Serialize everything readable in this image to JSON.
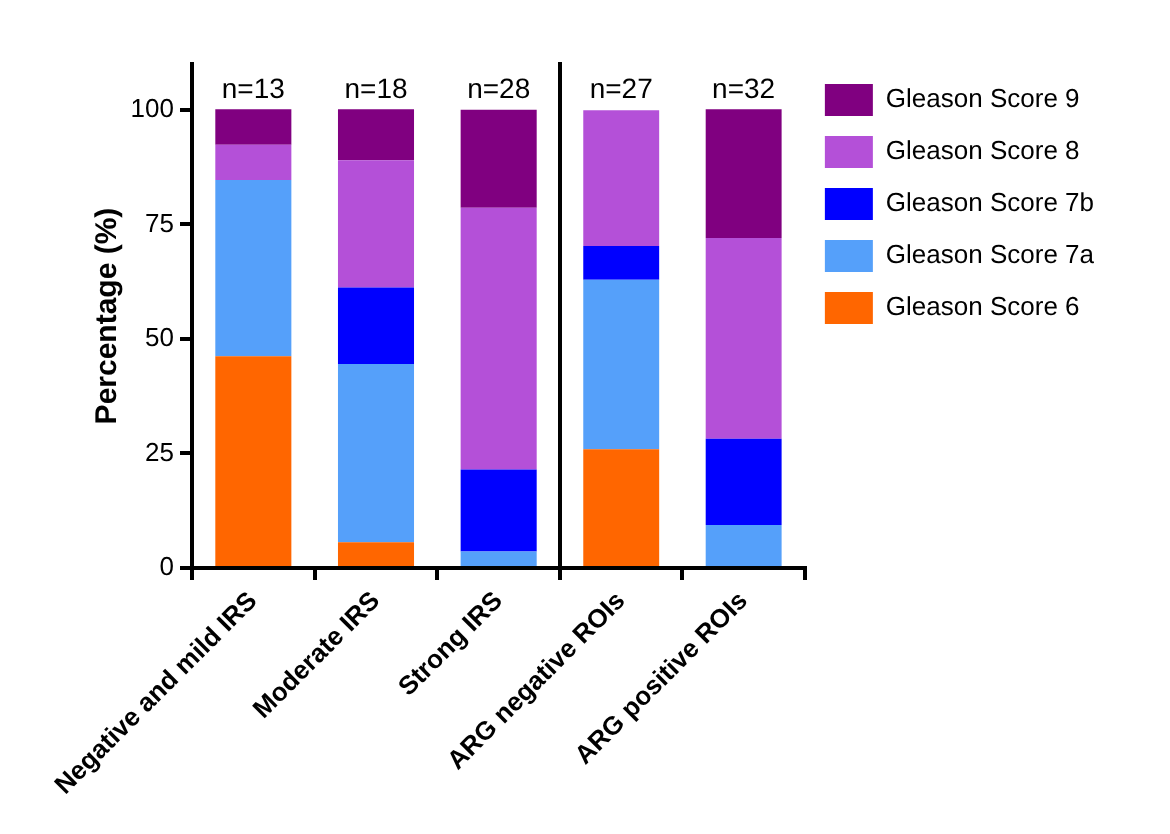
{
  "chart_data": [
    {
      "type": "bar",
      "ylabel": "Percentage (%)",
      "stacked": true,
      "grid": false,
      "categories": [
        "Negative and mild IRS",
        "Moderate IRS",
        "Strong IRS"
      ],
      "series": [
        {
          "color": "#ff6600",
          "values": [
            46.2,
            5.6,
            0
          ]
        },
        {
          "color": "#55a0fa",
          "values": [
            38.5,
            38.9,
            3.6
          ]
        },
        {
          "color": "#0000ff",
          "values": [
            0,
            16.7,
            17.9
          ]
        },
        {
          "color": "#b450d8",
          "values": [
            7.7,
            27.8,
            57.1
          ]
        },
        {
          "color": "#800080",
          "values": [
            7.7,
            11.1,
            21.4
          ]
        }
      ],
      "ylim": [
        0,
        110
      ],
      "yticks": [
        0,
        25,
        50,
        75,
        100
      ],
      "annotations": [
        {
          "text": "n=13",
          "x": "Negative and mild IRS",
          "y": 100
        },
        {
          "text": "n=18",
          "x": "Moderate IRS",
          "y": 100
        },
        {
          "text": "n=28",
          "x": "Strong IRS",
          "y": 100
        }
      ]
    },
    {
      "type": "bar",
      "stacked": true,
      "grid": false,
      "legend": "right",
      "tick_labels": "x",
      "categories": [
        "ARG negative ROIs",
        "ARG positive ROIs"
      ],
      "series": [
        {
          "name": "Gleason Score 6",
          "color": "#ff6600",
          "values": [
            25.9,
            0
          ]
        },
        {
          "name": "Gleason Score 7a",
          "color": "#55a0fa",
          "values": [
            37.0,
            9.4
          ]
        },
        {
          "name": "Gleason Score 7b",
          "color": "#0000ff",
          "values": [
            7.4,
            18.8
          ]
        },
        {
          "name": "Gleason Score 8",
          "color": "#b450d8",
          "values": [
            29.6,
            43.8
          ]
        },
        {
          "name": "Gleason Score 9",
          "color": "#800080",
          "values": [
            0,
            28.1
          ]
        }
      ],
      "ylim": [
        0,
        110
      ],
      "yticks": [
        0,
        25,
        50,
        75,
        100
      ],
      "annotations": [
        {
          "text": "n=27",
          "x": "ARG negative ROIs",
          "y": 100
        },
        {
          "text": "n=32",
          "x": "ARG positive ROIs",
          "y": 100
        }
      ]
    }
  ]
}
